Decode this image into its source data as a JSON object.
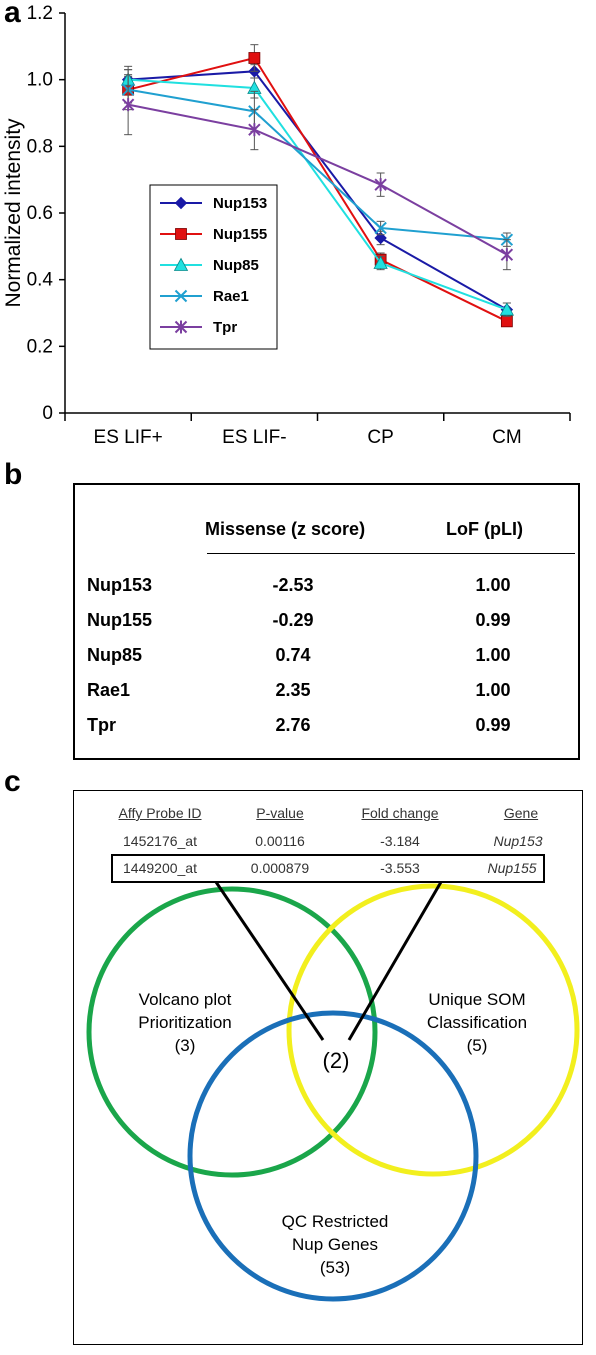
{
  "panels": {
    "a": "a",
    "b": "b",
    "c": "c"
  },
  "chart_data": {
    "type": "line",
    "categories": [
      "ES LIF+",
      "ES LIF-",
      "CP",
      "CM"
    ],
    "ylabel": "Normalized intensity",
    "xlabel": "",
    "ylim": [
      0,
      1.2
    ],
    "yticks": [
      "0",
      "0.2",
      "0.4",
      "0.6",
      "0.8",
      "1.0",
      "1.2"
    ],
    "legend_position": "left-middle",
    "grid": false,
    "series": [
      {
        "name": "Nup153",
        "color": "#1a1aa6",
        "marker": "diamond",
        "values": [
          1.0,
          1.025,
          0.525,
          0.31
        ],
        "errors": [
          0.04,
          0.02,
          0.02,
          0.02
        ]
      },
      {
        "name": "Nup155",
        "color": "#e01010",
        "marker": "square",
        "values": [
          0.97,
          1.065,
          0.46,
          0.275
        ],
        "errors": [
          0.04,
          0.04,
          0.02,
          0.015
        ]
      },
      {
        "name": "Nup85",
        "color": "#20e0e0",
        "marker": "triangle",
        "values": [
          1.0,
          0.975,
          0.45,
          0.31
        ],
        "errors": [
          0.03,
          0.03,
          0.02,
          0.02
        ]
      },
      {
        "name": "Rae1",
        "color": "#20a0d0",
        "marker": "x",
        "values": [
          0.97,
          0.905,
          0.555,
          0.52
        ],
        "errors": [
          0.06,
          0.06,
          0.02,
          0.02
        ]
      },
      {
        "name": "Tpr",
        "color": "#7b3fa0",
        "marker": "star",
        "values": [
          0.925,
          0.85,
          0.685,
          0.475
        ],
        "errors": [
          0.09,
          0.06,
          0.035,
          0.045
        ]
      }
    ]
  },
  "table": {
    "headers": [
      "Missense (z score)",
      "LoF (pLI)"
    ],
    "rows": [
      {
        "gene": "Nup153",
        "missense": "-2.53",
        "lof": "1.00"
      },
      {
        "gene": "Nup155",
        "missense": "-0.29",
        "lof": "0.99"
      },
      {
        "gene": "Nup85",
        "missense": "0.74",
        "lof": "1.00"
      },
      {
        "gene": "Rae1",
        "missense": "2.35",
        "lof": "1.00"
      },
      {
        "gene": "Tpr",
        "missense": "2.76",
        "lof": "0.99"
      }
    ]
  },
  "probe_table": {
    "headers": [
      "Affy Probe ID",
      "P-value",
      "Fold change",
      "Gene"
    ],
    "rows": [
      [
        "1452176_at",
        "0.00116",
        "-3.184",
        "Nup153"
      ],
      [
        "1449200_at",
        "0.000879",
        "-3.553",
        "Nup155"
      ]
    ]
  },
  "venn": {
    "sets": [
      {
        "label_line1": "Volcano plot",
        "label_line2": "Prioritization",
        "count": "(3)",
        "color": "#1aa64a"
      },
      {
        "label_line1": "Unique SOM",
        "label_line2": "Classification",
        "count": "(5)",
        "color": "#f2ef1e"
      },
      {
        "label_line1": "QC Restricted",
        "label_line2": "Nup Genes",
        "count": "(53)",
        "color": "#1a6fb8"
      }
    ],
    "overlap": "(2)"
  }
}
